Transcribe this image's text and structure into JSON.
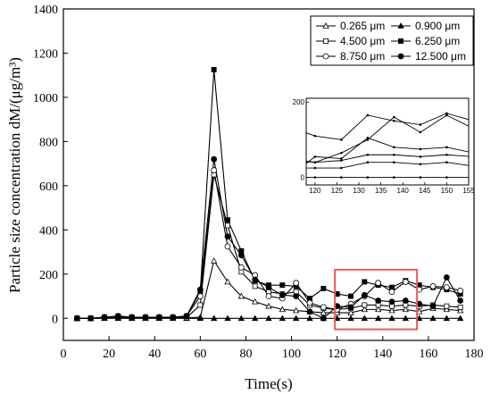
{
  "chart_data": {
    "type": "line",
    "title": "",
    "xlabel": "Time(s)",
    "ylabel": "Particle size concentration dM/(μg/m³)",
    "xlim": [
      0,
      180
    ],
    "ylim": [
      -100,
      1400
    ],
    "xticks": [
      0,
      20,
      40,
      60,
      80,
      100,
      120,
      140,
      160,
      180
    ],
    "yticks": [
      0,
      200,
      400,
      600,
      800,
      1000,
      1200,
      1400
    ],
    "legend_position": "top-right",
    "x": [
      6,
      12,
      18,
      24,
      30,
      36,
      42,
      48,
      54,
      60,
      66,
      72,
      78,
      84,
      90,
      96,
      102,
      108,
      114,
      120,
      126,
      132,
      138,
      144,
      150,
      156,
      162,
      168,
      174
    ],
    "series": [
      {
        "name": "0.265 μm",
        "marker": "triangle-open",
        "values": [
          0,
          0,
          2,
          3,
          2,
          2,
          2,
          2,
          2,
          5,
          260,
          165,
          100,
          75,
          55,
          40,
          35,
          30,
          25,
          25,
          25,
          40,
          40,
          35,
          40,
          30,
          45,
          40,
          35
        ]
      },
      {
        "name": "0.900 μm",
        "marker": "triangle-filled",
        "values": [
          0,
          0,
          0,
          0,
          0,
          0,
          0,
          0,
          0,
          0,
          0,
          0,
          0,
          0,
          0,
          0,
          0,
          0,
          0,
          0,
          0,
          0,
          0,
          0,
          0,
          0,
          0,
          0,
          0
        ]
      },
      {
        "name": "4.500 μm",
        "marker": "square-open",
        "values": [
          0,
          0,
          3,
          5,
          3,
          3,
          3,
          3,
          3,
          60,
          650,
          420,
          210,
          145,
          120,
          110,
          120,
          60,
          45,
          40,
          45,
          60,
          60,
          55,
          60,
          55,
          60,
          55,
          50
        ]
      },
      {
        "name": "6.250 μm",
        "marker": "square-filled",
        "values": [
          0,
          0,
          5,
          10,
          5,
          5,
          5,
          5,
          10,
          120,
          1125,
          445,
          305,
          170,
          150,
          150,
          145,
          90,
          135,
          110,
          100,
          165,
          150,
          140,
          170,
          150,
          140,
          130,
          110
        ]
      },
      {
        "name": "8.750 μm",
        "marker": "circle-open",
        "values": [
          0,
          0,
          5,
          10,
          5,
          5,
          5,
          5,
          10,
          100,
          670,
          325,
          230,
          195,
          100,
          90,
          160,
          70,
          50,
          40,
          65,
          100,
          160,
          120,
          165,
          130,
          145,
          140,
          125
        ]
      },
      {
        "name": "12.500 μm",
        "marker": "circle-filled",
        "values": [
          0,
          0,
          5,
          8,
          5,
          5,
          5,
          5,
          10,
          130,
          720,
          370,
          285,
          175,
          140,
          105,
          100,
          30,
          0,
          55,
          50,
          105,
          80,
          75,
          80,
          65,
          55,
          185,
          80
        ]
      }
    ],
    "highlight_box": {
      "x_range": [
        119,
        155
      ],
      "y_range": [
        -50,
        220
      ],
      "color": "#ee5a5a"
    },
    "inset": {
      "xlim": [
        118,
        155
      ],
      "ylim": [
        -20,
        210
      ],
      "xticks": [
        120,
        125,
        130,
        135,
        140,
        145,
        150,
        155
      ],
      "yticks": [
        0,
        200
      ]
    }
  }
}
